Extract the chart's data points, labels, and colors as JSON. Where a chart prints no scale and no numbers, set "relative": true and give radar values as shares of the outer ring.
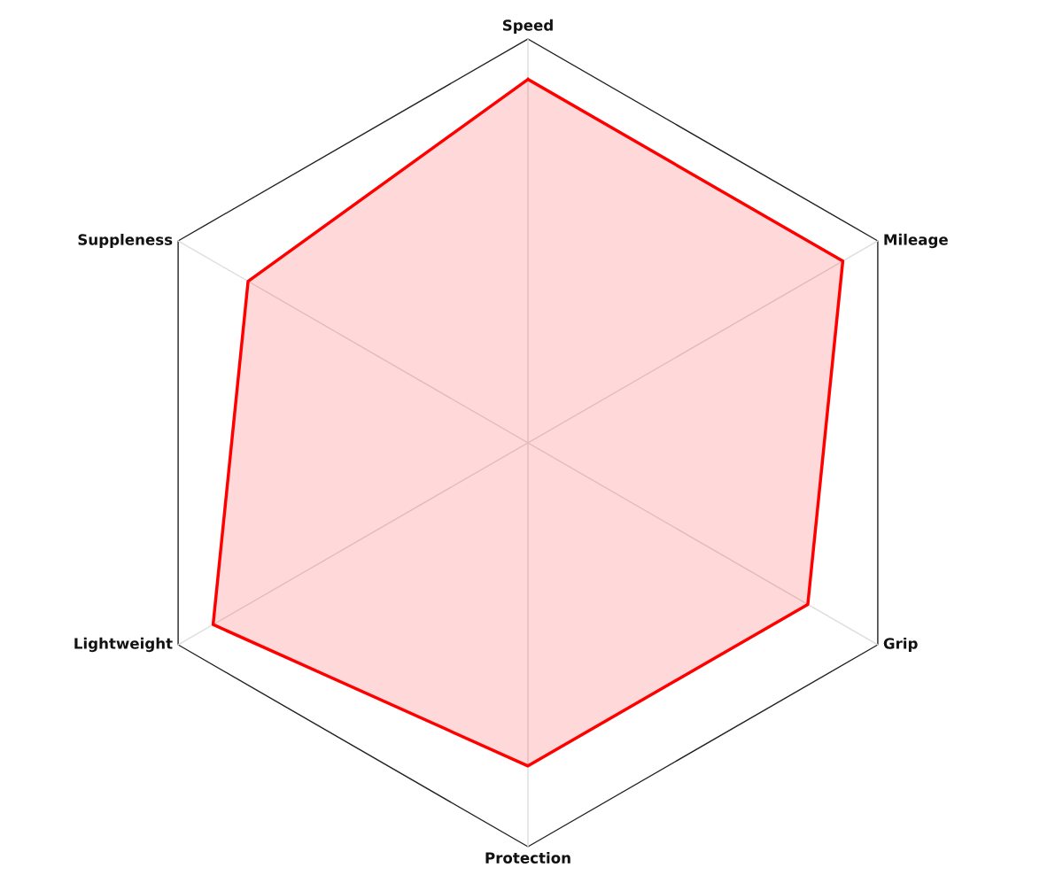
{
  "chart_data": {
    "type": "radar",
    "relative": true,
    "grid": true,
    "categories": [
      "Speed",
      "Mileage",
      "Grip",
      "Protection",
      "Lightweight",
      "Suppleness"
    ],
    "series": [
      {
        "color": "#ff0000",
        "values": [
          0.9,
          0.9,
          0.8,
          0.8,
          0.9,
          0.8
        ]
      }
    ]
  }
}
